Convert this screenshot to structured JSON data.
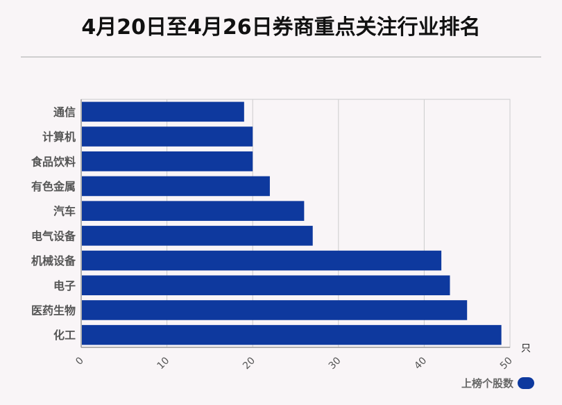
{
  "page": {
    "title": "4月20日至4月26日券商重点关注行业排名"
  },
  "chart_data": {
    "type": "bar",
    "orientation": "horizontal",
    "title": "4月20日至4月26日券商重点关注行业排名",
    "categories": [
      "通信",
      "计算机",
      "食品饮料",
      "有色金属",
      "汽车",
      "电气设备",
      "机械设备",
      "电子",
      "医药生物",
      "化工"
    ],
    "series": [
      {
        "name": "上榜个股数",
        "values": [
          19,
          20,
          20,
          22,
          26,
          27,
          42,
          43,
          45,
          49
        ]
      }
    ],
    "x_ticks": [
      0,
      10,
      20,
      30,
      40,
      50
    ],
    "xlim": [
      0,
      50
    ],
    "x_unit": "只",
    "grid": true,
    "legend_position": "bottom-right",
    "colors": {
      "bar": "#0e399e",
      "grid": "#cccccc",
      "axis": "#999999"
    }
  }
}
